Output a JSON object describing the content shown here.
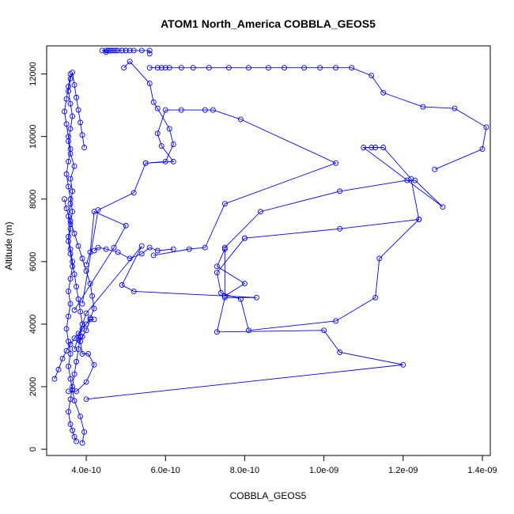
{
  "chart_data": {
    "type": "line",
    "title": "ATOM1 North_America COBBLA_GEOS5",
    "xlabel": "COBBLA_GEOS5",
    "ylabel": "Altitude (m)",
    "xlim": [
      3e-10,
      1.42e-09
    ],
    "ylim": [
      -200,
      12900
    ],
    "x_ticks": [
      4e-10,
      6e-10,
      8e-10,
      1e-09,
      1.2e-09,
      1.4e-09
    ],
    "x_tick_labels": [
      "4.0e-10",
      "6.0e-10",
      "8.0e-10",
      "1.0e-09",
      "1.2e-09",
      "1.4e-09"
    ],
    "y_ticks": [
      0,
      2000,
      4000,
      6000,
      8000,
      10000,
      12000
    ],
    "y_tick_labels": [
      "0",
      "2000",
      "4000",
      "6000",
      "8000",
      "10000",
      "12000"
    ],
    "marker": "open-circle",
    "grid": false,
    "series": [
      {
        "color": "#0000ff",
        "x": [
          3.9e-10,
          3.95e-10,
          3.85e-10,
          3.7e-10,
          3.65e-10,
          3.6e-10,
          3.55e-10,
          3.6e-10,
          3.55e-10,
          3.5e-10,
          3.55e-10,
          3.6e-10,
          3.55e-10,
          3.6e-10,
          3.65e-10,
          3.6e-10,
          3.55e-10,
          3.6e-10,
          3.55e-10,
          3.6e-10,
          3.65e-10,
          3.6e-10,
          3.7e-10,
          3.6e-10,
          3.55e-10,
          3.6e-10,
          3.65e-10,
          3.6e-10,
          3.55e-10,
          3.6e-10,
          3.65e-10,
          3.7e-10,
          3.75e-10,
          3.8e-10,
          3.85e-10,
          3.9e-10,
          3.95e-10
        ],
        "y": [
          200,
          550,
          1050,
          1550,
          1900,
          2250,
          2650,
          3050,
          3450,
          3850,
          4250,
          4650,
          5050,
          5450,
          5850,
          6250,
          6650,
          7050,
          7450,
          7850,
          8250,
          8650,
          9050,
          9450,
          9850,
          10250,
          10650,
          11050,
          11450,
          11850,
          12050,
          11650,
          11250,
          10850,
          10450,
          10050,
          9650
        ]
      },
      {
        "color": "#0000ff",
        "x": [
          3.6e-10,
          3.55e-10,
          3.5e-10,
          3.45e-10,
          3.5e-10,
          3.55e-10,
          3.6e-10,
          3.55e-10,
          3.5e-10,
          3.55e-10,
          3.6e-10,
          3.65e-10,
          3.6e-10,
          3.55e-10,
          3.6e-10,
          3.65e-10,
          3.7e-10,
          3.75e-10,
          3.8e-10,
          3.85e-10,
          3.9e-10,
          3.85e-10,
          3.8e-10,
          3.75e-10,
          3.7e-10,
          3.65e-10,
          3.6e-10,
          3.55e-10,
          3.6e-10,
          3.65e-10,
          3.7e-10,
          3.75e-10
        ],
        "y": [
          12000,
          11600,
          11200,
          10800,
          10400,
          10000,
          9600,
          9200,
          8800,
          8400,
          8000,
          7600,
          7200,
          6800,
          6400,
          6000,
          5600,
          5200,
          4800,
          4400,
          4000,
          3600,
          3200,
          2800,
          2400,
          2000,
          1600,
          1200,
          800,
          600,
          400,
          250
        ]
      },
      {
        "color": "#0000ff",
        "x": [
          3.2e-10,
          3.3e-10,
          3.4e-10,
          3.5e-10,
          3.6e-10,
          3.7e-10,
          3.8e-10,
          3.9e-10,
          4e-10,
          4.1e-10,
          4.2e-10,
          4.15e-10,
          4.1e-10,
          4e-10,
          3.9e-10,
          3.8e-10,
          3.7e-10,
          3.6e-10,
          3.5e-10,
          3.45e-10
        ],
        "y": [
          2250,
          2550,
          2900,
          3150,
          3350,
          3550,
          3700,
          3850,
          4000,
          4200,
          4500,
          4900,
          5300,
          5700,
          6100,
          6500,
          6900,
          7300,
          7700,
          8000
        ]
      },
      {
        "color": "#0000ff",
        "x": [
          3.55e-10,
          3.75e-10,
          4e-10,
          4.2e-10,
          4.05e-10,
          3.9e-10,
          3.85e-10,
          3.8e-10,
          3.9e-10,
          4e-10,
          4.1e-10,
          4.2e-10
        ],
        "y": [
          1850,
          1850,
          2150,
          2700,
          3050,
          3050,
          3450,
          3500,
          3600,
          3800,
          4150,
          4150
        ]
      },
      {
        "color": "#0000ff",
        "x": [
          4e-10,
          1.2e-09,
          1.04e-09,
          1e-09,
          7.3e-10,
          7.5e-10,
          8.3e-10,
          5.2e-10,
          4.9e-10,
          5.4e-10,
          4e-10,
          3.7e-10
        ],
        "y": [
          1600,
          2700,
          3100,
          3800,
          3750,
          4850,
          4850,
          5050,
          5250,
          6500,
          4350,
          3200
        ]
      },
      {
        "color": "#0000ff",
        "x": [
          3.7e-10,
          4.7e-10,
          5e-10,
          4.2e-10,
          4.1e-10,
          4e-10
        ],
        "y": [
          4450,
          6450,
          7150,
          7600,
          6300,
          5900
        ]
      },
      {
        "color": "#0000ff",
        "x": [
          3.9e-10,
          4.3e-10,
          5.2e-10,
          5.5e-10,
          6.2e-10,
          5.9e-10,
          5.8e-10,
          6e-10,
          6.4e-10,
          7e-10,
          7.2e-10,
          7.9e-10,
          1.03e-09,
          7.5e-10,
          7e-10,
          6.6e-10,
          5.7e-10
        ],
        "y": [
          4650,
          7650,
          8200,
          9150,
          9200,
          9700,
          10100,
          10850,
          10850,
          10850,
          10850,
          10550,
          9150,
          7850,
          6450,
          6400,
          6200
        ]
      },
      {
        "color": "#0000ff",
        "x": [
          4.2e-10,
          4.3e-10,
          4.5e-10,
          4.8e-10,
          5.1e-10,
          5.4e-10,
          5.6e-10,
          5.8e-10,
          6.2e-10
        ],
        "y": [
          6350,
          6450,
          6400,
          6300,
          6100,
          6250,
          6450,
          6350,
          6400
        ]
      },
      {
        "color": "#0000ff",
        "x": [
          7.5e-10,
          7.3e-10,
          8e-10,
          7.5e-10,
          7.5e-10,
          8.4e-10,
          1.04e-09,
          1.21e-09,
          1.23e-09,
          1.3e-09,
          1.1e-09,
          1.12e-09,
          1.13e-09,
          1.15e-09,
          1.22e-09,
          1.24e-09,
          1.14e-09,
          1.13e-09,
          1.03e-09,
          8.1e-10,
          7.9e-10,
          7.4e-10,
          7.3e-10,
          8e-10
        ],
        "y": [
          6400,
          5850,
          5300,
          4900,
          6450,
          7600,
          8250,
          8600,
          8600,
          7750,
          9650,
          9650,
          9650,
          9650,
          8650,
          7350,
          6100,
          4850,
          4100,
          3800,
          4800,
          5000,
          5650,
          6750
        ]
      },
      {
        "color": "#0000ff",
        "x": [
          8e-10,
          1.04e-09,
          1.24e-09
        ],
        "y": [
          6750,
          7050,
          7350
        ]
      },
      {
        "color": "#0000ff",
        "x": [
          1.28e-09,
          1.4e-09,
          1.41e-09,
          1.33e-09,
          1.25e-09,
          1.15e-09,
          1.12e-09,
          1.07e-09,
          1.03e-09,
          9.9e-10,
          9.5e-10,
          9e-10,
          8.6e-10,
          8.1e-10,
          7.6e-10,
          7.1e-10,
          6.7e-10,
          6.4e-10,
          6.1e-10,
          6e-10,
          5.9e-10,
          5.8e-10,
          5.6e-10
        ],
        "y": [
          8950,
          9600,
          10300,
          10900,
          10950,
          11400,
          11950,
          12200,
          12200,
          12200,
          12200,
          12200,
          12200,
          12200,
          12200,
          12200,
          12200,
          12200,
          12200,
          12200,
          12200,
          12200,
          12200
        ]
      },
      {
        "color": "#0000ff",
        "x": [
          5.6e-10,
          5.6e-10,
          5.4e-10,
          5.2e-10,
          5e-10,
          4.9e-10,
          4.8e-10,
          4.75e-10,
          4.7e-10,
          4.65e-10,
          4.6e-10,
          4.55e-10,
          4.5e-10,
          4.4e-10,
          4.5e-10,
          4.6e-10,
          4.9e-10,
          5e-10,
          5.1e-10
        ],
        "y": [
          12650,
          12750,
          12750,
          12750,
          12750,
          12750,
          12750,
          12750,
          12750,
          12750,
          12750,
          12750,
          12750,
          12750,
          12700,
          12750,
          12750,
          12750,
          12750
        ]
      },
      {
        "color": "#0000ff",
        "x": [
          4.95e-10,
          5.1e-10,
          5.6e-10,
          5.7e-10,
          5.8e-10,
          6.1e-10,
          6.2e-10,
          6e-10,
          5.5e-10
        ],
        "y": [
          12200,
          12400,
          11700,
          11100,
          10900,
          10250,
          9750,
          9200,
          9150
        ]
      }
    ]
  }
}
